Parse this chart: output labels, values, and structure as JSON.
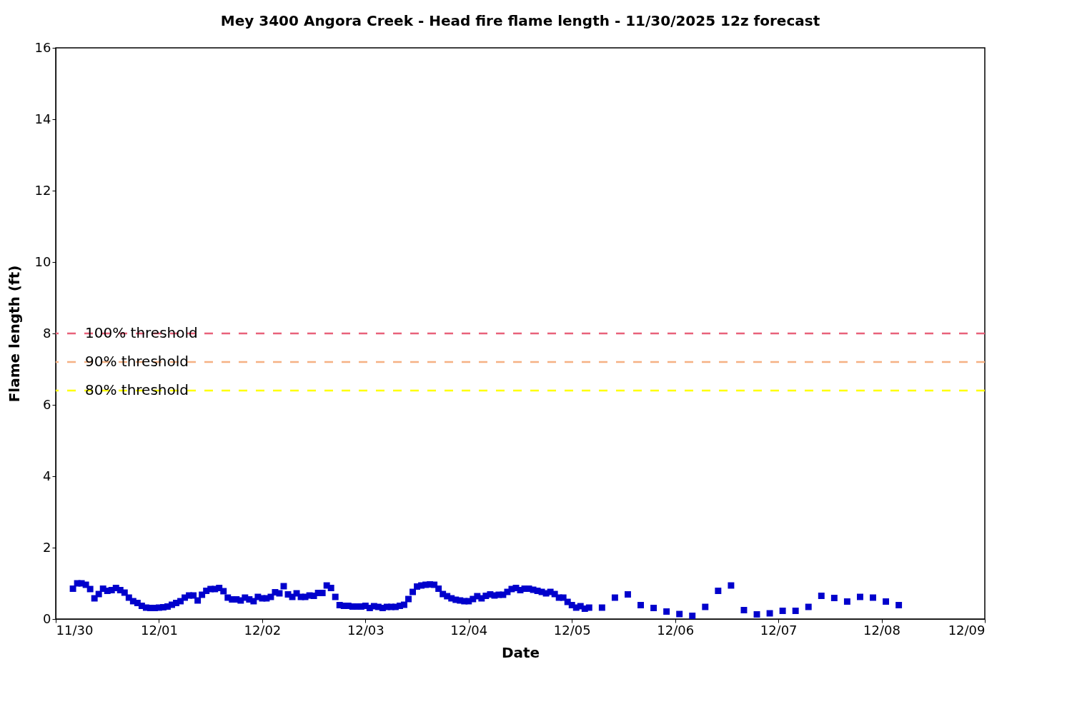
{
  "chart_data": {
    "type": "scatter",
    "title": "Mey 3400 Angora Creek - Head fire flame length - 11/30/2025 12z forecast",
    "xlabel": "Date",
    "ylabel": "Flame length (ft)",
    "x": [
      "2025-11-30T04:00",
      "2025-11-30T05:00",
      "2025-11-30T06:00",
      "2025-11-30T07:00",
      "2025-11-30T08:00",
      "2025-11-30T09:00",
      "2025-11-30T10:00",
      "2025-11-30T11:00",
      "2025-11-30T12:00",
      "2025-11-30T13:00",
      "2025-11-30T14:00",
      "2025-11-30T15:00",
      "2025-11-30T16:00",
      "2025-11-30T17:00",
      "2025-11-30T18:00",
      "2025-11-30T19:00",
      "2025-11-30T20:00",
      "2025-11-30T21:00",
      "2025-11-30T22:00",
      "2025-11-30T23:00",
      "2025-12-01T00:00",
      "2025-12-01T01:00",
      "2025-12-01T02:00",
      "2025-12-01T03:00",
      "2025-12-01T04:00",
      "2025-12-01T05:00",
      "2025-12-01T06:00",
      "2025-12-01T07:00",
      "2025-12-01T08:00",
      "2025-12-01T09:00",
      "2025-12-01T10:00",
      "2025-12-01T11:00",
      "2025-12-01T12:00",
      "2025-12-01T13:00",
      "2025-12-01T14:00",
      "2025-12-01T15:00",
      "2025-12-01T16:00",
      "2025-12-01T17:00",
      "2025-12-01T18:00",
      "2025-12-01T19:00",
      "2025-12-01T20:00",
      "2025-12-01T21:00",
      "2025-12-01T22:00",
      "2025-12-01T23:00",
      "2025-12-02T00:00",
      "2025-12-02T01:00",
      "2025-12-02T02:00",
      "2025-12-02T03:00",
      "2025-12-02T04:00",
      "2025-12-02T05:00",
      "2025-12-02T06:00",
      "2025-12-02T07:00",
      "2025-12-02T08:00",
      "2025-12-02T09:00",
      "2025-12-02T10:00",
      "2025-12-02T11:00",
      "2025-12-02T12:00",
      "2025-12-02T13:00",
      "2025-12-02T14:00",
      "2025-12-02T15:00",
      "2025-12-02T16:00",
      "2025-12-02T17:00",
      "2025-12-02T18:00",
      "2025-12-02T19:00",
      "2025-12-02T20:00",
      "2025-12-02T21:00",
      "2025-12-02T22:00",
      "2025-12-02T23:00",
      "2025-12-03T00:00",
      "2025-12-03T01:00",
      "2025-12-03T02:00",
      "2025-12-03T03:00",
      "2025-12-03T04:00",
      "2025-12-03T05:00",
      "2025-12-03T06:00",
      "2025-12-03T07:00",
      "2025-12-03T08:00",
      "2025-12-03T09:00",
      "2025-12-03T10:00",
      "2025-12-03T11:00",
      "2025-12-03T12:00",
      "2025-12-03T13:00",
      "2025-12-03T14:00",
      "2025-12-03T15:00",
      "2025-12-03T16:00",
      "2025-12-03T17:00",
      "2025-12-03T18:00",
      "2025-12-03T19:00",
      "2025-12-03T20:00",
      "2025-12-03T21:00",
      "2025-12-03T22:00",
      "2025-12-03T23:00",
      "2025-12-04T00:00",
      "2025-12-04T01:00",
      "2025-12-04T02:00",
      "2025-12-04T03:00",
      "2025-12-04T04:00",
      "2025-12-04T05:00",
      "2025-12-04T06:00",
      "2025-12-04T07:00",
      "2025-12-04T08:00",
      "2025-12-04T09:00",
      "2025-12-04T10:00",
      "2025-12-04T11:00",
      "2025-12-04T12:00",
      "2025-12-04T13:00",
      "2025-12-04T14:00",
      "2025-12-04T15:00",
      "2025-12-04T16:00",
      "2025-12-04T17:00",
      "2025-12-04T18:00",
      "2025-12-04T19:00",
      "2025-12-04T20:00",
      "2025-12-04T21:00",
      "2025-12-04T22:00",
      "2025-12-04T23:00",
      "2025-12-05T00:00",
      "2025-12-05T01:00",
      "2025-12-05T02:00",
      "2025-12-05T03:00",
      "2025-12-05T04:00",
      "2025-12-05T07:00",
      "2025-12-05T10:00",
      "2025-12-05T13:00",
      "2025-12-05T16:00",
      "2025-12-05T19:00",
      "2025-12-05T22:00",
      "2025-12-06T01:00",
      "2025-12-06T04:00",
      "2025-12-06T07:00",
      "2025-12-06T10:00",
      "2025-12-06T13:00",
      "2025-12-06T16:00",
      "2025-12-06T19:00",
      "2025-12-06T22:00",
      "2025-12-07T01:00",
      "2025-12-07T04:00",
      "2025-12-07T07:00",
      "2025-12-07T10:00",
      "2025-12-07T13:00",
      "2025-12-07T16:00",
      "2025-12-07T19:00",
      "2025-12-07T22:00",
      "2025-12-08T01:00",
      "2025-12-08T04:00"
    ],
    "series": [
      {
        "color": "#0000cc",
        "values": [
          0.85,
          1.0,
          1.0,
          0.96,
          0.84,
          0.58,
          0.7,
          0.85,
          0.79,
          0.81,
          0.87,
          0.81,
          0.74,
          0.6,
          0.5,
          0.45,
          0.37,
          0.32,
          0.31,
          0.31,
          0.32,
          0.33,
          0.35,
          0.4,
          0.45,
          0.5,
          0.6,
          0.66,
          0.66,
          0.52,
          0.68,
          0.79,
          0.84,
          0.84,
          0.87,
          0.78,
          0.6,
          0.55,
          0.55,
          0.52,
          0.6,
          0.55,
          0.5,
          0.62,
          0.58,
          0.58,
          0.62,
          0.75,
          0.72,
          0.92,
          0.69,
          0.62,
          0.72,
          0.62,
          0.62,
          0.66,
          0.65,
          0.73,
          0.73,
          0.94,
          0.87,
          0.62,
          0.39,
          0.37,
          0.37,
          0.35,
          0.35,
          0.35,
          0.37,
          0.31,
          0.36,
          0.34,
          0.31,
          0.34,
          0.34,
          0.34,
          0.37,
          0.4,
          0.56,
          0.76,
          0.91,
          0.94,
          0.96,
          0.97,
          0.96,
          0.85,
          0.7,
          0.64,
          0.58,
          0.54,
          0.52,
          0.5,
          0.5,
          0.56,
          0.64,
          0.58,
          0.65,
          0.69,
          0.66,
          0.68,
          0.68,
          0.76,
          0.84,
          0.87,
          0.81,
          0.85,
          0.85,
          0.82,
          0.79,
          0.76,
          0.72,
          0.76,
          0.7,
          0.6,
          0.6,
          0.48,
          0.39,
          0.32,
          0.36,
          0.29,
          0.32,
          0.32,
          0.6,
          0.69,
          0.39,
          0.31,
          0.21,
          0.14,
          0.09,
          0.34,
          0.79,
          0.94,
          0.25,
          0.13,
          0.16,
          0.23,
          0.23,
          0.34,
          0.65,
          0.59,
          0.49,
          0.62,
          0.6,
          0.49,
          0.39
        ]
      }
    ],
    "xlim": [
      "2025-11-30",
      "2025-12-09"
    ],
    "xticks": [
      {
        "value": "2025-11-30",
        "label": "11/30"
      },
      {
        "value": "2025-12-01",
        "label": "12/01"
      },
      {
        "value": "2025-12-02",
        "label": "12/02"
      },
      {
        "value": "2025-12-03",
        "label": "12/03"
      },
      {
        "value": "2025-12-04",
        "label": "12/04"
      },
      {
        "value": "2025-12-05",
        "label": "12/05"
      },
      {
        "value": "2025-12-06",
        "label": "12/06"
      },
      {
        "value": "2025-12-07",
        "label": "12/07"
      },
      {
        "value": "2025-12-08",
        "label": "12/08"
      },
      {
        "value": "2025-12-09",
        "label": "12/09"
      }
    ],
    "ylim": [
      0,
      16
    ],
    "yticks": [
      0,
      2,
      4,
      6,
      8,
      10,
      12,
      14,
      16
    ],
    "ref_lines": [
      {
        "axis": "y",
        "value": 8,
        "label": "100% threshold",
        "color": "#e8627a",
        "line_style": "dashed"
      },
      {
        "axis": "y",
        "value": 7.2,
        "label": "90% threshold",
        "color": "#f5b183",
        "line_style": "dashed"
      },
      {
        "axis": "y",
        "value": 6.4,
        "label": "80% threshold",
        "color": "#ffff00",
        "line_style": "dashed"
      }
    ],
    "marker": "square",
    "grid": false
  }
}
